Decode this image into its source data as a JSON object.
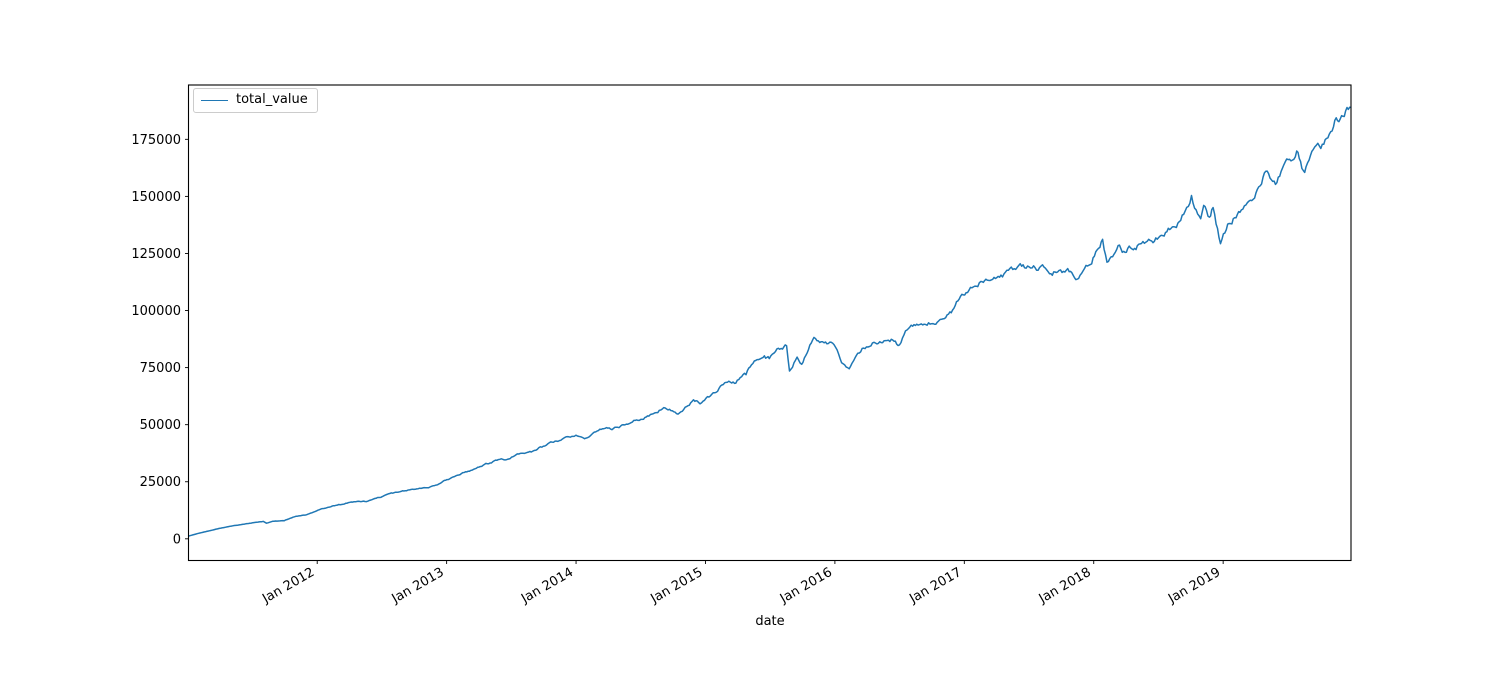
{
  "chart_data": {
    "type": "line",
    "title": "",
    "xlabel": "date",
    "ylabel": "",
    "grid": false,
    "background": "#ffffff",
    "axis_color": "#000000",
    "legend": {
      "position": "upper left",
      "entries": [
        "total_value"
      ]
    },
    "x_ticks": [
      {
        "label": "Jan 2012",
        "date": "2012-01-01"
      },
      {
        "label": "Jan 2013",
        "date": "2013-01-01"
      },
      {
        "label": "Jan 2014",
        "date": "2014-01-01"
      },
      {
        "label": "Jan 2015",
        "date": "2015-01-01"
      },
      {
        "label": "Jan 2016",
        "date": "2016-01-01"
      },
      {
        "label": "Jan 2017",
        "date": "2017-01-01"
      },
      {
        "label": "Jan 2018",
        "date": "2018-01-01"
      },
      {
        "label": "Jan 2019",
        "date": "2019-01-01"
      }
    ],
    "y_ticks": [
      {
        "label": "0",
        "value": 0
      },
      {
        "label": "25000",
        "value": 25000
      },
      {
        "label": "50000",
        "value": 50000
      },
      {
        "label": "75000",
        "value": 75000
      },
      {
        "label": "100000",
        "value": 100000
      },
      {
        "label": "125000",
        "value": 125000
      },
      {
        "label": "150000",
        "value": 150000
      },
      {
        "label": "175000",
        "value": 175000
      }
    ],
    "ylim": [
      -9500,
      198800
    ],
    "xlim": [
      "2011-01-03",
      "2019-12-27"
    ],
    "series": [
      {
        "name": "total_value",
        "color": "#1f77b4",
        "line_width": 1.5,
        "points": [
          [
            "2011-01-03",
            1200
          ],
          [
            "2011-02-01",
            2400
          ],
          [
            "2011-03-01",
            3500
          ],
          [
            "2011-04-01",
            4600
          ],
          [
            "2011-05-02",
            5600
          ],
          [
            "2011-06-01",
            6300
          ],
          [
            "2011-07-01",
            7000
          ],
          [
            "2011-08-01",
            7600
          ],
          [
            "2011-08-10",
            6800
          ],
          [
            "2011-09-01",
            7700
          ],
          [
            "2011-09-30",
            7900
          ],
          [
            "2011-10-28",
            9600
          ],
          [
            "2011-12-01",
            10500
          ],
          [
            "2012-01-03",
            12500
          ],
          [
            "2012-02-01",
            13800
          ],
          [
            "2012-03-01",
            15100
          ],
          [
            "2012-04-02",
            16000
          ],
          [
            "2012-05-18",
            16300
          ],
          [
            "2012-06-15",
            17700
          ],
          [
            "2012-07-02",
            18500
          ],
          [
            "2012-08-01",
            19900
          ],
          [
            "2012-09-14",
            21400
          ],
          [
            "2012-10-12",
            22000
          ],
          [
            "2012-11-15",
            22800
          ],
          [
            "2012-12-14",
            24300
          ],
          [
            "2013-01-02",
            26000
          ],
          [
            "2013-02-01",
            27800
          ],
          [
            "2013-03-01",
            29600
          ],
          [
            "2013-04-01",
            31300
          ],
          [
            "2013-05-21",
            34400
          ],
          [
            "2013-06-24",
            34900
          ],
          [
            "2013-07-22",
            37200
          ],
          [
            "2013-08-27",
            37800
          ],
          [
            "2013-09-18",
            40000
          ],
          [
            "2013-10-29",
            42100
          ],
          [
            "2013-11-27",
            44000
          ],
          [
            "2013-12-31",
            45300
          ],
          [
            "2014-02-03",
            44400
          ],
          [
            "2014-03-07",
            48100
          ],
          [
            "2014-04-11",
            47800
          ],
          [
            "2014-05-13",
            49900
          ],
          [
            "2014-06-20",
            52100
          ],
          [
            "2014-07-24",
            53600
          ],
          [
            "2014-09-05",
            57400
          ],
          [
            "2014-10-15",
            54700
          ],
          [
            "2014-11-28",
            60700
          ],
          [
            "2014-12-16",
            59100
          ],
          [
            "2015-01-15",
            62500
          ],
          [
            "2015-02-25",
            68500
          ],
          [
            "2015-03-26",
            68000
          ],
          [
            "2015-04-24",
            71500
          ],
          [
            "2015-05-21",
            78000
          ],
          [
            "2015-06-15",
            80500
          ],
          [
            "2015-06-29",
            79000
          ],
          [
            "2015-07-20",
            83000
          ],
          [
            "2015-08-17",
            84500
          ],
          [
            "2015-08-25",
            73500
          ],
          [
            "2015-09-16",
            80000
          ],
          [
            "2015-09-29",
            76500
          ],
          [
            "2015-11-03",
            88500
          ],
          [
            "2015-12-01",
            86000
          ],
          [
            "2015-12-29",
            85000
          ],
          [
            "2016-01-20",
            77000
          ],
          [
            "2016-02-11",
            74500
          ],
          [
            "2016-03-21",
            83500
          ],
          [
            "2016-04-20",
            86000
          ],
          [
            "2016-06-08",
            87500
          ],
          [
            "2016-06-27",
            85000
          ],
          [
            "2016-07-22",
            91000
          ],
          [
            "2016-08-23",
            93500
          ],
          [
            "2016-09-22",
            94800
          ],
          [
            "2016-10-24",
            96000
          ],
          [
            "2016-11-25",
            99000
          ],
          [
            "2016-12-13",
            104300
          ],
          [
            "2017-01-06",
            107500
          ],
          [
            "2017-02-17",
            112500
          ],
          [
            "2017-03-01",
            113500
          ],
          [
            "2017-04-05",
            115500
          ],
          [
            "2017-05-16",
            117200
          ],
          [
            "2017-06-19",
            118600
          ],
          [
            "2017-07-14",
            119400
          ],
          [
            "2017-08-21",
            117600
          ],
          [
            "2017-09-25",
            117600
          ],
          [
            "2017-10-23",
            117000
          ],
          [
            "2017-11-15",
            114200
          ],
          [
            "2017-12-18",
            119800
          ],
          [
            "2018-01-26",
            131500
          ],
          [
            "2018-02-08",
            121800
          ],
          [
            "2018-03-09",
            128200
          ],
          [
            "2018-04-02",
            125200
          ],
          [
            "2018-05-10",
            128600
          ],
          [
            "2018-06-12",
            130800
          ],
          [
            "2018-07-25",
            134800
          ],
          [
            "2018-08-29",
            139500
          ],
          [
            "2018-09-20",
            146000
          ],
          [
            "2018-10-03",
            151300
          ],
          [
            "2018-10-29",
            141000
          ],
          [
            "2018-11-07",
            146400
          ],
          [
            "2018-11-23",
            141400
          ],
          [
            "2018-12-03",
            145400
          ],
          [
            "2018-12-24",
            129500
          ],
          [
            "2019-01-18",
            138000
          ],
          [
            "2019-02-22",
            144000
          ],
          [
            "2019-03-21",
            148500
          ],
          [
            "2019-04-30",
            161200
          ],
          [
            "2019-05-31",
            156200
          ],
          [
            "2019-06-20",
            164000
          ],
          [
            "2019-07-26",
            170200
          ],
          [
            "2019-08-14",
            162200
          ],
          [
            "2019-09-12",
            170000
          ],
          [
            "2019-10-11",
            173000
          ],
          [
            "2019-11-08",
            180000
          ],
          [
            "2019-11-27",
            184500
          ],
          [
            "2019-12-27",
            189300
          ]
        ]
      }
    ]
  }
}
